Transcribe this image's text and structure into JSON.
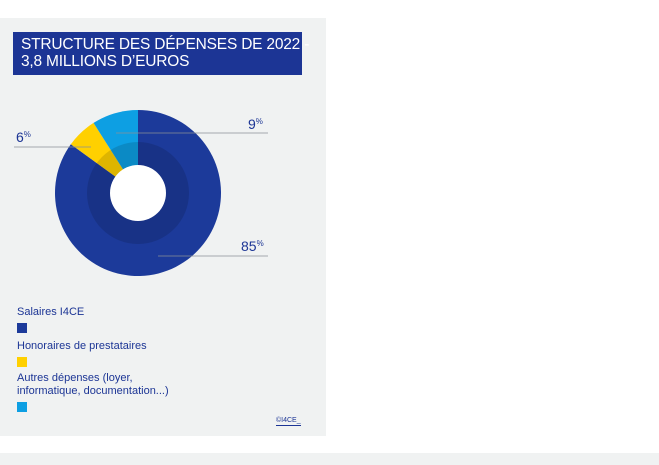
{
  "chart_data": {
    "type": "pie",
    "variant": "donut",
    "title_lines": [
      "STRUCTURE DES DÉPENSES DE 2022 -",
      "3,8 MILLIONS D’EUROS"
    ],
    "slices": [
      {
        "name": "Salaires I4CE",
        "value": 85,
        "label_number": "85",
        "label_unit": "%",
        "color": "#1c3a9a"
      },
      {
        "name": "Honoraires de prestataires",
        "value": 6,
        "label_number": "6",
        "label_unit": "%",
        "color": "#ffd000"
      },
      {
        "name": "Autres dépenses (loyer, informatique, documentation...)",
        "value": 9,
        "label_number": "9",
        "label_unit": "%",
        "color": "#0d9fe3"
      }
    ]
  },
  "legend": {
    "salaires": {
      "label": "Salaires I4CE",
      "color": "#1c3a9a"
    },
    "honoraires": {
      "label": "Honoraires de prestataires",
      "color": "#ffd000"
    },
    "autres": {
      "label_line1": "Autres dépenses (loyer,",
      "label_line2": "informatique, documentation...)",
      "color": "#0d9fe3"
    }
  },
  "credit": "©I4CE_"
}
